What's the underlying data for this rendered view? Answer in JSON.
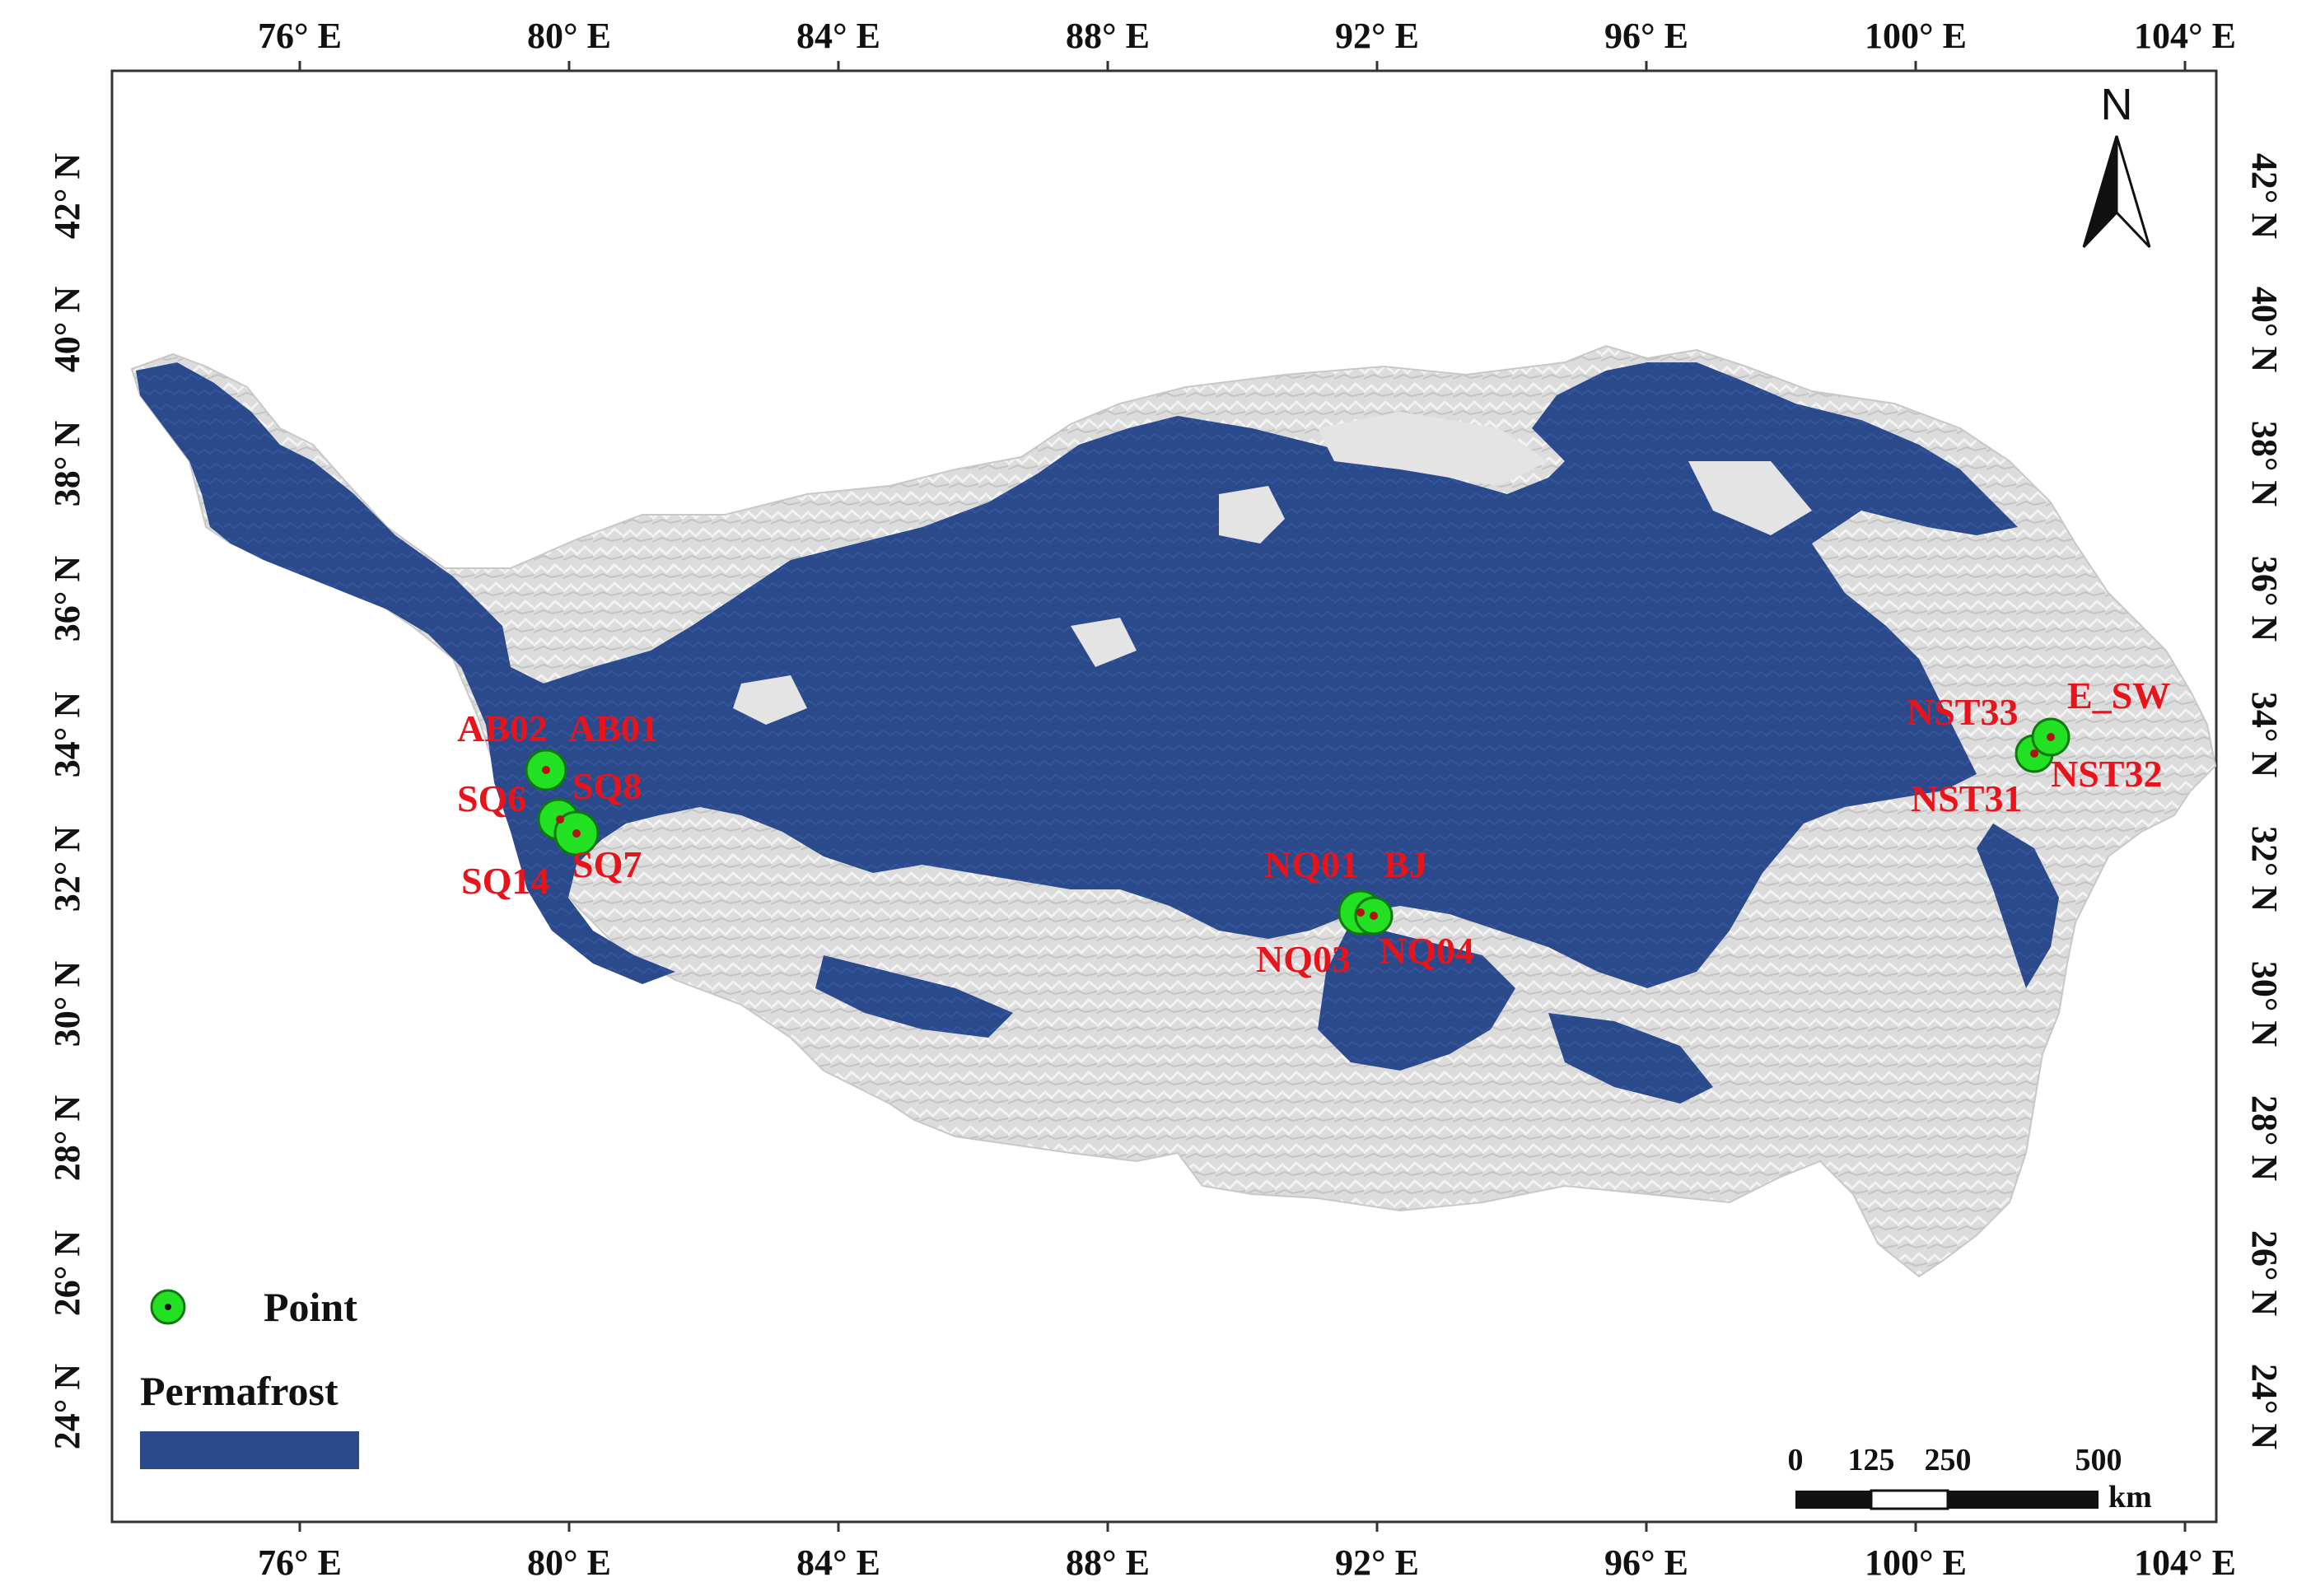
{
  "map": {
    "x_ticks": [
      "76° E",
      "80° E",
      "84° E",
      "88° E",
      "92° E",
      "96° E",
      "100° E",
      "104° E"
    ],
    "y_ticks": [
      "42° N",
      "40° N",
      "38° N",
      "36° N",
      "34° N",
      "32° N",
      "30° N",
      "28° N",
      "26° N",
      "24° N"
    ],
    "north_label": "N",
    "colors": {
      "permafrost": "#2b4a8b",
      "terrain": "#d9d9d9",
      "point_fill": "#22e022",
      "label": "#e8141c"
    },
    "sites": [
      {
        "label": "AB02"
      },
      {
        "label": "AB01"
      },
      {
        "label": "SQ6"
      },
      {
        "label": "SQ8"
      },
      {
        "label": "SQ14"
      },
      {
        "label": "SQ7"
      },
      {
        "label": "NQ01"
      },
      {
        "label": "BJ"
      },
      {
        "label": "NQ03"
      },
      {
        "label": "NQ04"
      },
      {
        "label": "NST33"
      },
      {
        "label": "E_SW"
      },
      {
        "label": "NST31"
      },
      {
        "label": "NST32"
      }
    ]
  },
  "legend": {
    "point_label": "Point",
    "permafrost_label": "Permafrost"
  },
  "scale_bar": {
    "ticks": [
      "0",
      "125",
      "250",
      "500"
    ],
    "unit": "km"
  }
}
